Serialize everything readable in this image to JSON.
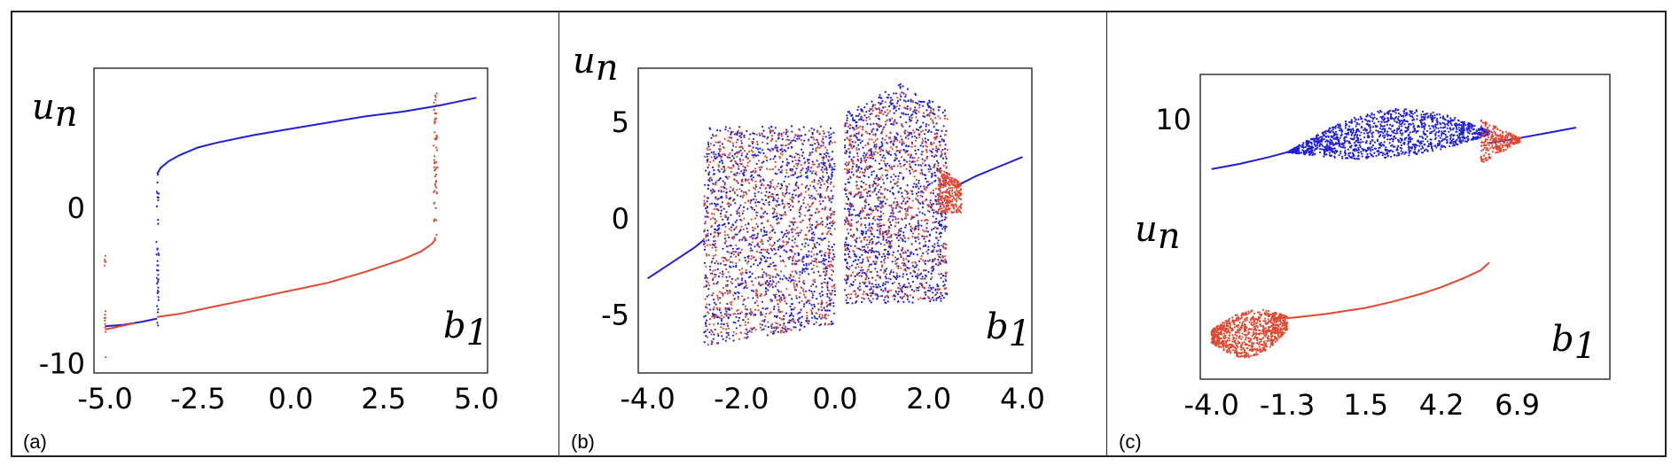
{
  "colors": {
    "series1": "#1f1fd6",
    "series2": "#e0482f"
  },
  "chart_data": [
    {
      "type": "scatter",
      "panel_label": "(a)",
      "ylabel": "u_n",
      "xlabel": "b_1",
      "xlim": [
        -5.3,
        5.3
      ],
      "ylim": [
        -10.6,
        9.0
      ],
      "xticks": [
        "-5.0",
        "-2.5",
        "0.0",
        "2.5",
        "5.0"
      ],
      "xtick_values": [
        -5.0,
        -2.5,
        0.0,
        2.5,
        5.0
      ],
      "yticks": [
        "0",
        "-10"
      ],
      "ytick_values": [
        0,
        -10
      ],
      "series": [
        {
          "color": "#1f1fd6",
          "segments": [
            {
              "x": [
                -3.6,
                -3.5,
                -3.3,
                -3.0,
                -2.5,
                -2.0,
                -1.0,
                0.0,
                1.0,
                2.0,
                3.0,
                4.0,
                5.0
              ],
              "y": [
                2.2,
                2.6,
                3.0,
                3.4,
                3.9,
                4.2,
                4.7,
                5.1,
                5.5,
                5.9,
                6.2,
                6.6,
                7.1
              ]
            },
            {
              "x": [
                -5.0,
                -4.5,
                -4.0,
                -3.6
              ],
              "y": [
                -7.6,
                -7.5,
                -7.3,
                -7.1
              ]
            }
          ]
        },
        {
          "color": "#e0482f",
          "segments": [
            {
              "x": [
                -3.6,
                -3.0,
                -2.0,
                -1.0,
                0.0,
                1.0,
                2.0,
                3.0,
                3.5,
                3.8,
                3.9
              ],
              "y": [
                -7.0,
                -6.8,
                -6.3,
                -5.8,
                -5.3,
                -4.8,
                -4.1,
                -3.3,
                -2.8,
                -2.3,
                -2.0
              ]
            },
            {
              "x": [
                -5.0,
                -4.6,
                -4.2
              ],
              "y": [
                -7.8,
                -7.6,
                -7.4
              ]
            }
          ]
        }
      ]
    },
    {
      "type": "scatter",
      "panel_label": "(b)",
      "ylabel": "u_n",
      "xlabel": "b_1",
      "xlim": [
        -4.2,
        4.2
      ],
      "ylim": [
        -8.0,
        7.8
      ],
      "xticks": [
        "-4.0",
        "-2.0",
        "0.0",
        "2.0",
        "4.0"
      ],
      "xtick_values": [
        -4.0,
        -2.0,
        0.0,
        2.0,
        4.0
      ],
      "yticks": [
        "5",
        "0",
        "-5"
      ],
      "ytick_values": [
        5,
        0,
        -5
      ],
      "series": [
        {
          "color": "#1f1fd6",
          "segments": [
            {
              "x": [
                -4.0,
                -3.5,
                -3.0,
                -2.8
              ],
              "y": [
                -3.1,
                -2.3,
                -1.5,
                -1.1
              ]
            },
            {
              "x": [
                2.6,
                3.0,
                3.5,
                4.0
              ],
              "y": [
                1.7,
                2.2,
                2.7,
                3.2
              ]
            }
          ]
        },
        {
          "color": "#e0482f",
          "segments": []
        }
      ]
    },
    {
      "type": "scatter",
      "panel_label": "(c)",
      "ylabel": "u_n",
      "xlabel": "b_1",
      "xlim": [
        -4.4,
        10.2
      ],
      "ylim": [
        -10.0,
        13.5
      ],
      "xticks": [
        "-4.0",
        "-1.3",
        "1.5",
        "4.2",
        "6.9"
      ],
      "xtick_values": [
        -4.0,
        -1.3,
        1.5,
        4.2,
        6.9
      ],
      "yticks": [
        "10"
      ],
      "ytick_values": [
        10
      ],
      "series": [
        {
          "color": "#1f1fd6",
          "segments": [
            {
              "x": [
                -4.0,
                -3.0,
                -2.0,
                -1.3
              ],
              "y": [
                6.2,
                6.6,
                7.1,
                7.5
              ]
            },
            {
              "x": [
                5.9,
                7.0,
                8.0,
                9.0
              ],
              "y": [
                8.2,
                8.6,
                9.0,
                9.4
              ]
            }
          ]
        },
        {
          "color": "#e0482f",
          "segments": [
            {
              "x": [
                -1.3,
                0.0,
                1.5,
                2.5,
                3.5,
                4.2,
                5.0,
                5.6,
                5.9
              ],
              "y": [
                -5.3,
                -5.0,
                -4.5,
                -4.0,
                -3.4,
                -2.9,
                -2.2,
                -1.6,
                -1.0
              ]
            }
          ]
        }
      ]
    }
  ]
}
